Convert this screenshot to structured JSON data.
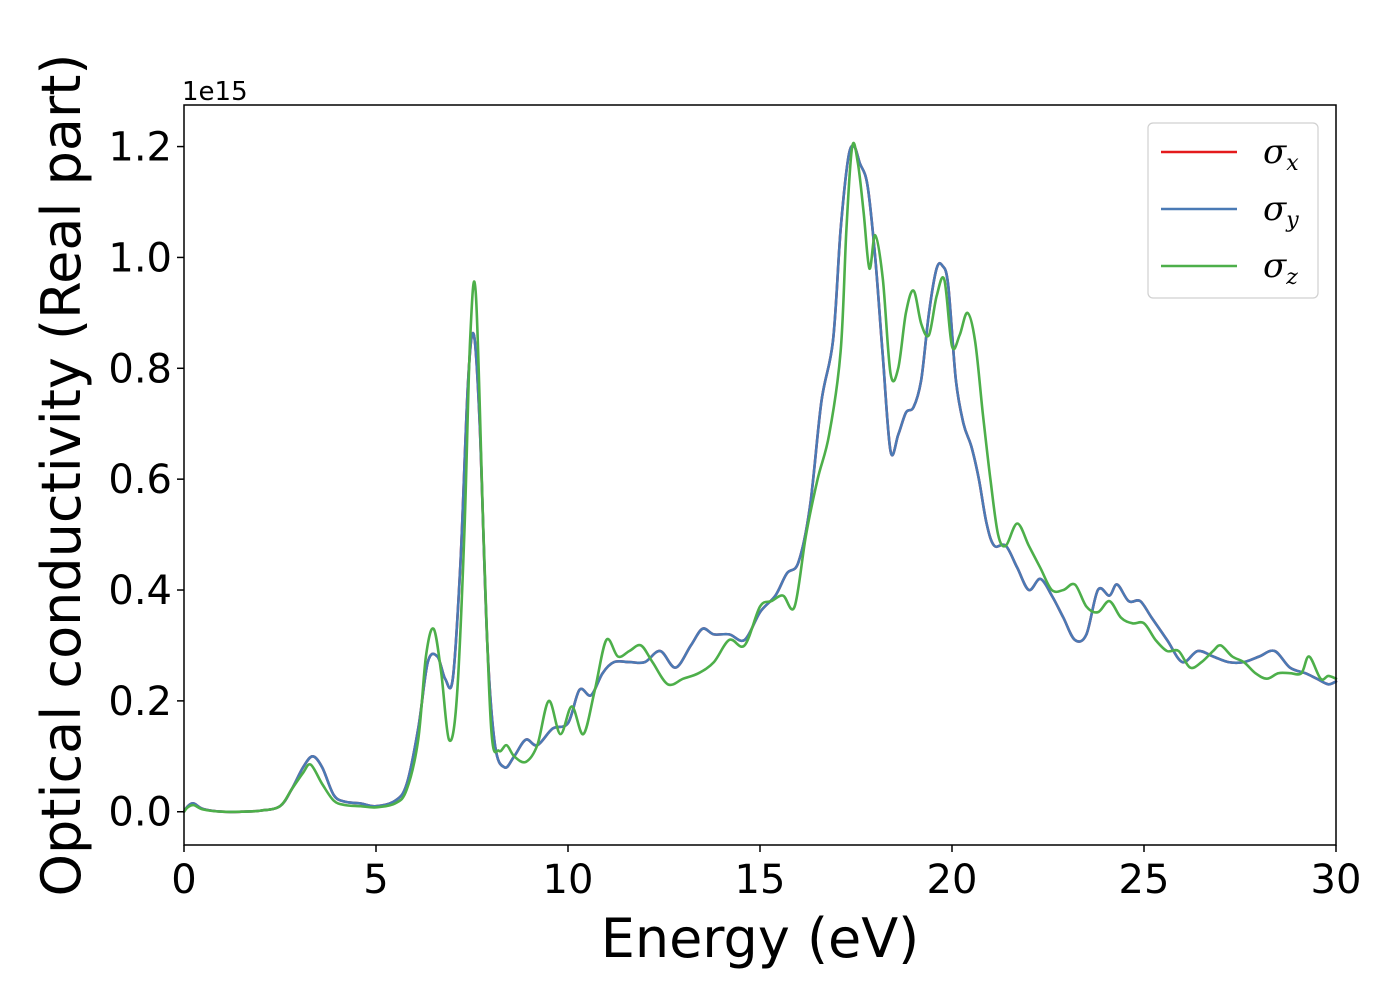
{
  "chart_data": {
    "type": "line",
    "xlabel": "Energy (eV)",
    "ylabel": "Optical conductivity (Real part)",
    "y_offset_label": "1e15",
    "xlim": [
      0,
      30
    ],
    "ylim": [
      -0.06,
      1.275
    ],
    "x_ticks": [
      0,
      5,
      10,
      15,
      20,
      25,
      30
    ],
    "x_tick_labels": [
      "0",
      "5",
      "10",
      "15",
      "20",
      "25",
      "30"
    ],
    "y_ticks": [
      0.0,
      0.2,
      0.4,
      0.6,
      0.8,
      1.0,
      1.2
    ],
    "y_tick_labels": [
      "0.0",
      "0.2",
      "0.4",
      "0.6",
      "0.8",
      "1.0",
      "1.2"
    ],
    "grid": false,
    "legend_position": "top-right",
    "series": [
      {
        "name": "σx",
        "symbol": "σ",
        "subscript": "x",
        "color": "#e41a1c",
        "x": [
          0,
          0.1,
          0.25,
          0.5,
          1,
          1.5,
          2,
          2.5,
          2.8,
          3.1,
          3.35,
          3.6,
          3.9,
          4.2,
          4.6,
          5.0,
          5.5,
          5.8,
          6.1,
          6.35,
          6.6,
          6.8,
          7.0,
          7.2,
          7.4,
          7.55,
          7.7,
          7.9,
          8.1,
          8.35,
          8.6,
          8.9,
          9.2,
          9.6,
          10.0,
          10.3,
          10.6,
          10.9,
          11.2,
          11.6,
          12.0,
          12.4,
          12.8,
          13.2,
          13.5,
          13.8,
          14.2,
          14.6,
          15.0,
          15.4,
          15.7,
          16.0,
          16.3,
          16.6,
          16.9,
          17.1,
          17.3,
          17.45,
          17.6,
          17.8,
          18.0,
          18.2,
          18.4,
          18.6,
          18.8,
          19.0,
          19.2,
          19.4,
          19.6,
          19.75,
          19.9,
          20.1,
          20.3,
          20.5,
          20.7,
          20.9,
          21.1,
          21.4,
          21.7,
          22.0,
          22.3,
          22.6,
          22.9,
          23.2,
          23.5,
          23.8,
          24.1,
          24.3,
          24.6,
          24.9,
          25.2,
          25.6,
          26.0,
          26.4,
          26.8,
          27.2,
          27.6,
          28.0,
          28.4,
          28.8,
          29.2,
          29.5,
          29.8,
          30.0
        ],
        "values": [
          0.0,
          0.01,
          0.015,
          0.005,
          0.0,
          0.0,
          0.002,
          0.01,
          0.04,
          0.08,
          0.1,
          0.08,
          0.03,
          0.018,
          0.015,
          0.01,
          0.02,
          0.05,
          0.15,
          0.27,
          0.28,
          0.24,
          0.24,
          0.45,
          0.78,
          0.86,
          0.7,
          0.3,
          0.12,
          0.08,
          0.1,
          0.13,
          0.12,
          0.15,
          0.16,
          0.22,
          0.21,
          0.25,
          0.27,
          0.27,
          0.27,
          0.29,
          0.26,
          0.3,
          0.33,
          0.32,
          0.32,
          0.31,
          0.36,
          0.39,
          0.43,
          0.45,
          0.55,
          0.74,
          0.85,
          1.05,
          1.18,
          1.2,
          1.17,
          1.13,
          1.0,
          0.82,
          0.65,
          0.68,
          0.72,
          0.73,
          0.78,
          0.9,
          0.98,
          0.985,
          0.95,
          0.78,
          0.7,
          0.66,
          0.6,
          0.52,
          0.48,
          0.48,
          0.44,
          0.4,
          0.42,
          0.39,
          0.35,
          0.31,
          0.32,
          0.4,
          0.39,
          0.41,
          0.38,
          0.38,
          0.35,
          0.31,
          0.27,
          0.29,
          0.28,
          0.27,
          0.27,
          0.28,
          0.29,
          0.26,
          0.25,
          0.24,
          0.23,
          0.235
        ]
      },
      {
        "name": "σy",
        "symbol": "σ",
        "subscript": "y",
        "color": "#4a7ab5",
        "x": [
          0,
          0.1,
          0.25,
          0.5,
          1,
          1.5,
          2,
          2.5,
          2.8,
          3.1,
          3.35,
          3.6,
          3.9,
          4.2,
          4.6,
          5.0,
          5.5,
          5.8,
          6.1,
          6.35,
          6.6,
          6.8,
          7.0,
          7.2,
          7.4,
          7.55,
          7.7,
          7.9,
          8.1,
          8.35,
          8.6,
          8.9,
          9.2,
          9.6,
          10.0,
          10.3,
          10.6,
          10.9,
          11.2,
          11.6,
          12.0,
          12.4,
          12.8,
          13.2,
          13.5,
          13.8,
          14.2,
          14.6,
          15.0,
          15.4,
          15.7,
          16.0,
          16.3,
          16.6,
          16.9,
          17.1,
          17.3,
          17.45,
          17.6,
          17.8,
          18.0,
          18.2,
          18.4,
          18.6,
          18.8,
          19.0,
          19.2,
          19.4,
          19.6,
          19.75,
          19.9,
          20.1,
          20.3,
          20.5,
          20.7,
          20.9,
          21.1,
          21.4,
          21.7,
          22.0,
          22.3,
          22.6,
          22.9,
          23.2,
          23.5,
          23.8,
          24.1,
          24.3,
          24.6,
          24.9,
          25.2,
          25.6,
          26.0,
          26.4,
          26.8,
          27.2,
          27.6,
          28.0,
          28.4,
          28.8,
          29.2,
          29.5,
          29.8,
          30.0
        ],
        "values": [
          0.0,
          0.01,
          0.015,
          0.005,
          0.0,
          0.0,
          0.002,
          0.01,
          0.04,
          0.08,
          0.1,
          0.08,
          0.03,
          0.018,
          0.015,
          0.01,
          0.02,
          0.05,
          0.15,
          0.27,
          0.28,
          0.24,
          0.24,
          0.45,
          0.78,
          0.86,
          0.7,
          0.3,
          0.12,
          0.08,
          0.1,
          0.13,
          0.12,
          0.15,
          0.16,
          0.22,
          0.21,
          0.25,
          0.27,
          0.27,
          0.27,
          0.29,
          0.26,
          0.3,
          0.33,
          0.32,
          0.32,
          0.31,
          0.36,
          0.39,
          0.43,
          0.45,
          0.55,
          0.74,
          0.85,
          1.05,
          1.18,
          1.2,
          1.17,
          1.13,
          1.0,
          0.82,
          0.65,
          0.68,
          0.72,
          0.73,
          0.78,
          0.9,
          0.98,
          0.985,
          0.95,
          0.78,
          0.7,
          0.66,
          0.6,
          0.52,
          0.48,
          0.48,
          0.44,
          0.4,
          0.42,
          0.39,
          0.35,
          0.31,
          0.32,
          0.4,
          0.39,
          0.41,
          0.38,
          0.38,
          0.35,
          0.31,
          0.27,
          0.29,
          0.28,
          0.27,
          0.27,
          0.28,
          0.29,
          0.26,
          0.25,
          0.24,
          0.23,
          0.235
        ]
      },
      {
        "name": "σz",
        "symbol": "σ",
        "subscript": "z",
        "color": "#4daf4a",
        "x": [
          0,
          0.1,
          0.25,
          0.5,
          1,
          1.5,
          2,
          2.5,
          2.8,
          3.1,
          3.3,
          3.6,
          3.9,
          4.2,
          4.6,
          5.0,
          5.5,
          5.8,
          6.1,
          6.3,
          6.5,
          6.7,
          6.9,
          7.1,
          7.3,
          7.45,
          7.6,
          7.8,
          8.0,
          8.2,
          8.4,
          8.6,
          8.9,
          9.2,
          9.5,
          9.8,
          10.1,
          10.4,
          10.7,
          11.0,
          11.3,
          11.6,
          11.9,
          12.2,
          12.6,
          13.0,
          13.4,
          13.8,
          14.2,
          14.6,
          15.0,
          15.3,
          15.6,
          15.9,
          16.2,
          16.5,
          16.8,
          17.1,
          17.25,
          17.4,
          17.55,
          17.7,
          17.85,
          18.0,
          18.2,
          18.4,
          18.6,
          18.8,
          19.0,
          19.2,
          19.4,
          19.6,
          19.8,
          20.0,
          20.2,
          20.4,
          20.6,
          20.8,
          21.0,
          21.2,
          21.4,
          21.7,
          22.0,
          22.3,
          22.6,
          22.9,
          23.2,
          23.5,
          23.8,
          24.1,
          24.4,
          24.7,
          25.0,
          25.3,
          25.6,
          25.9,
          26.2,
          26.5,
          26.8,
          27.0,
          27.3,
          27.6,
          27.9,
          28.2,
          28.5,
          28.8,
          29.1,
          29.3,
          29.6,
          29.8,
          30.0
        ],
        "values": [
          0.0,
          0.008,
          0.012,
          0.004,
          0.0,
          0.0,
          0.002,
          0.01,
          0.04,
          0.07,
          0.085,
          0.05,
          0.02,
          0.012,
          0.01,
          0.008,
          0.015,
          0.04,
          0.13,
          0.28,
          0.33,
          0.25,
          0.13,
          0.2,
          0.5,
          0.85,
          0.935,
          0.5,
          0.15,
          0.11,
          0.12,
          0.1,
          0.09,
          0.12,
          0.2,
          0.14,
          0.19,
          0.14,
          0.22,
          0.31,
          0.28,
          0.29,
          0.3,
          0.27,
          0.23,
          0.24,
          0.25,
          0.27,
          0.31,
          0.3,
          0.37,
          0.38,
          0.39,
          0.37,
          0.5,
          0.6,
          0.68,
          0.83,
          1.05,
          1.2,
          1.17,
          1.08,
          0.98,
          1.04,
          0.96,
          0.79,
          0.8,
          0.9,
          0.94,
          0.88,
          0.86,
          0.93,
          0.96,
          0.84,
          0.86,
          0.9,
          0.85,
          0.72,
          0.6,
          0.5,
          0.48,
          0.52,
          0.48,
          0.44,
          0.4,
          0.4,
          0.41,
          0.37,
          0.36,
          0.38,
          0.35,
          0.34,
          0.34,
          0.31,
          0.29,
          0.29,
          0.26,
          0.27,
          0.29,
          0.3,
          0.28,
          0.27,
          0.25,
          0.24,
          0.25,
          0.25,
          0.25,
          0.28,
          0.24,
          0.245,
          0.24
        ]
      }
    ]
  }
}
